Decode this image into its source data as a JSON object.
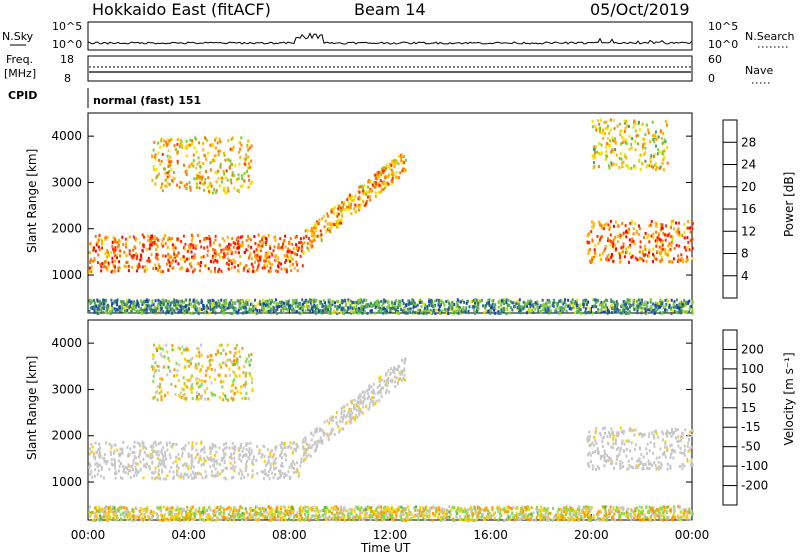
{
  "header": {
    "radar": "Hokkaido East (fitACF)",
    "beam": "Beam 14",
    "date": "05/Oct/2019"
  },
  "top_panels": {
    "nsky_label": "N.Sky",
    "nsky_ticks": [
      "10^5",
      "10^0"
    ],
    "nsearch_label": "N.Search",
    "nsearch_ticks": [
      "10^5",
      "10^0"
    ],
    "freq_label_line1": "Freq.",
    "freq_label_line2": "[MHz]",
    "freq_ticks": [
      "18",
      "8"
    ],
    "nave_label": "Nave",
    "nave_ticks": [
      "60",
      "0"
    ],
    "cpid_label": "CPID",
    "cpid_text": "normal (fast) 151"
  },
  "colors": {
    "power": [
      "#0010ff",
      "#1a3fc0",
      "#2c6e80",
      "#4aa060",
      "#7fcc30",
      "#f0e000",
      "#ffb000",
      "#ff7a00",
      "#ff3000",
      "#ff0000"
    ],
    "velocity": [
      "#2030ff",
      "#2050a0",
      "#2f7f4a",
      "#52b83a",
      "#8bd84a",
      "#c8c8c8",
      "#ffd000",
      "#ff9a00",
      "#ff5a00",
      "#ff1a00"
    ]
  },
  "chart_data": [
    {
      "type": "heatmap",
      "title": "Power",
      "xlabel": "Time UT",
      "ylabel": "Slant Range [km]",
      "x_tick_labels": [
        "00:00",
        "04:00",
        "08:00",
        "12:00",
        "16:00",
        "20:00",
        "00:00"
      ],
      "xlim_hours": [
        0,
        24
      ],
      "ylim": [
        180,
        4500
      ],
      "y_ticks": [
        1000,
        2000,
        3000,
        4000
      ],
      "colorbar": {
        "label": "Power [dB]",
        "ticks": [
          4,
          8,
          12,
          16,
          20,
          24,
          28
        ],
        "range": [
          0,
          32
        ]
      },
      "series": [
        {
          "region": "main echo band (1000–2000 km), 00:00–08:30",
          "x_start": 0,
          "x_end": 8.5,
          "y_range": [
            1100,
            1900
          ],
          "value": 26
        },
        {
          "region": "rising band toward 3500 km",
          "x_start": 8.5,
          "x_end": 12.6,
          "y_range": [
            1700,
            3500
          ],
          "value": 22
        },
        {
          "region": "upper band 2800–4000 km",
          "x_start": 2.5,
          "x_end": 6.5,
          "y_range": [
            2800,
            4000
          ],
          "value": 20
        },
        {
          "region": "morning-side band",
          "x_start": 19.8,
          "x_end": 24,
          "y_range": [
            1300,
            2200
          ],
          "value": 25
        },
        {
          "region": "far range 3300–4400 km",
          "x_start": 20,
          "x_end": 23,
          "y_range": [
            3300,
            4400
          ],
          "value": 18
        },
        {
          "region": "near range ground scatter",
          "x_start": 0,
          "x_end": 24,
          "y_range": [
            200,
            500
          ],
          "value": 10
        }
      ]
    },
    {
      "type": "heatmap",
      "title": "Velocity",
      "xlabel": "Time UT",
      "ylabel": "Slant Range [km]",
      "x_tick_labels": [
        "00:00",
        "04:00",
        "08:00",
        "12:00",
        "16:00",
        "20:00",
        "00:00"
      ],
      "xlim_hours": [
        0,
        24
      ],
      "ylim": [
        180,
        4500
      ],
      "y_ticks": [
        1000,
        2000,
        3000,
        4000
      ],
      "colorbar": {
        "label": "Velocity [m s⁻¹]",
        "ticks": [
          "200",
          "100",
          "50",
          "15",
          "-15",
          "-50",
          "-100",
          "-200"
        ],
        "range": [
          -250,
          250
        ]
      },
      "series": [
        {
          "region": "main band (ground scatter, grey)",
          "x_start": 0,
          "x_end": 8.5,
          "y_range": [
            1100,
            1900
          ],
          "value": 0
        },
        {
          "region": "rising band",
          "x_start": 8.5,
          "x_end": 12.6,
          "y_range": [
            1700,
            3500
          ],
          "value": 0
        },
        {
          "region": "upper band",
          "x_start": 2.5,
          "x_end": 6.5,
          "y_range": [
            2800,
            4000
          ],
          "value": -40
        },
        {
          "region": "morning-side band",
          "x_start": 19.8,
          "x_end": 24,
          "y_range": [
            1300,
            2200
          ],
          "value": 0
        },
        {
          "region": "near range",
          "x_start": 0,
          "x_end": 24,
          "y_range": [
            200,
            500
          ],
          "value": 40
        }
      ]
    }
  ]
}
